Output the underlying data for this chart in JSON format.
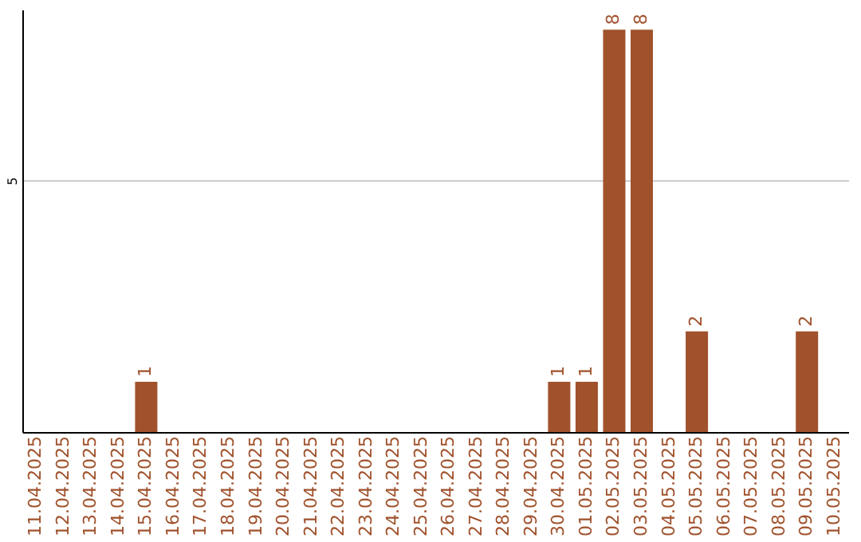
{
  "chart_data": {
    "type": "bar",
    "categories": [
      "11.04.2025",
      "12.04.2025",
      "13.04.2025",
      "14.04.2025",
      "15.04.2025",
      "16.04.2025",
      "17.04.2025",
      "18.04.2025",
      "19.04.2025",
      "20.04.2025",
      "21.04.2025",
      "22.04.2025",
      "23.04.2025",
      "24.04.2025",
      "25.04.2025",
      "26.04.2025",
      "27.04.2025",
      "28.04.2025",
      "29.04.2025",
      "30.04.2025",
      "01.05.2025",
      "02.05.2025",
      "03.05.2025",
      "04.05.2025",
      "05.05.2025",
      "06.05.2025",
      "07.05.2025",
      "08.05.2025",
      "09.05.2025",
      "10.05.2025"
    ],
    "values": [
      0,
      0,
      0,
      0,
      1,
      0,
      0,
      0,
      0,
      0,
      0,
      0,
      0,
      0,
      0,
      0,
      0,
      0,
      0,
      1,
      1,
      8,
      8,
      0,
      2,
      0,
      0,
      0,
      2,
      0
    ],
    "value_labels": [
      null,
      null,
      null,
      null,
      "1",
      null,
      null,
      null,
      null,
      null,
      null,
      null,
      null,
      null,
      null,
      null,
      null,
      null,
      null,
      "1",
      "1",
      "8",
      "8",
      null,
      "2",
      null,
      null,
      null,
      "2",
      null
    ],
    "color": "#a0522d",
    "ylim": [
      0,
      8.4
    ],
    "yticks": [
      5
    ],
    "grid": "y"
  }
}
